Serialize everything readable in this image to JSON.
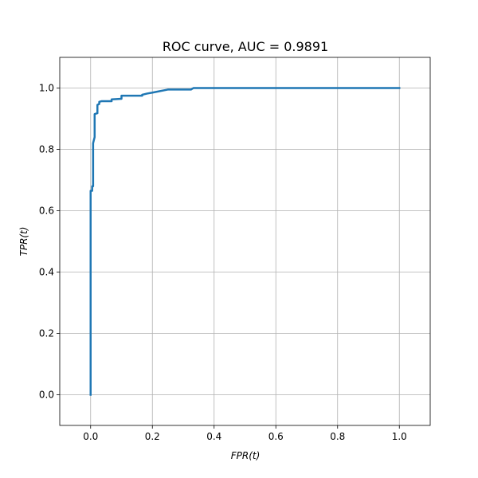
{
  "chart_data": {
    "type": "line",
    "title": "ROC curve, AUC = 0.9891",
    "xlabel": "FPR(t)",
    "ylabel": "TPR(t)",
    "xlim": [
      -0.1,
      1.1
    ],
    "ylim": [
      -0.1,
      1.1
    ],
    "grid": true,
    "xticks": [
      0.0,
      0.2,
      0.4,
      0.6,
      0.8,
      1.0
    ],
    "yticks": [
      0.0,
      0.2,
      0.4,
      0.6,
      0.8,
      1.0
    ],
    "xtick_labels": [
      "0.0",
      "0.2",
      "0.4",
      "0.6",
      "0.8",
      "1.0"
    ],
    "ytick_labels": [
      "0.0",
      "0.2",
      "0.4",
      "0.6",
      "0.8",
      "1.0"
    ],
    "series": [
      {
        "color": "#1f77b4",
        "x": [
          0.0,
          0.0,
          0.005,
          0.005,
          0.008,
          0.008,
          0.013,
          0.013,
          0.022,
          0.022,
          0.028,
          0.028,
          0.035,
          0.068,
          0.068,
          0.1,
          0.1,
          0.167,
          0.167,
          0.183,
          0.2,
          0.25,
          0.325,
          0.333,
          0.5,
          0.75,
          1.0
        ],
        "y": [
          0.0,
          0.665,
          0.665,
          0.68,
          0.68,
          0.82,
          0.84,
          0.915,
          0.918,
          0.945,
          0.948,
          0.955,
          0.957,
          0.957,
          0.963,
          0.965,
          0.975,
          0.975,
          0.978,
          0.982,
          0.985,
          0.995,
          0.995,
          1.0,
          1.0,
          1.0,
          1.0
        ]
      }
    ]
  }
}
